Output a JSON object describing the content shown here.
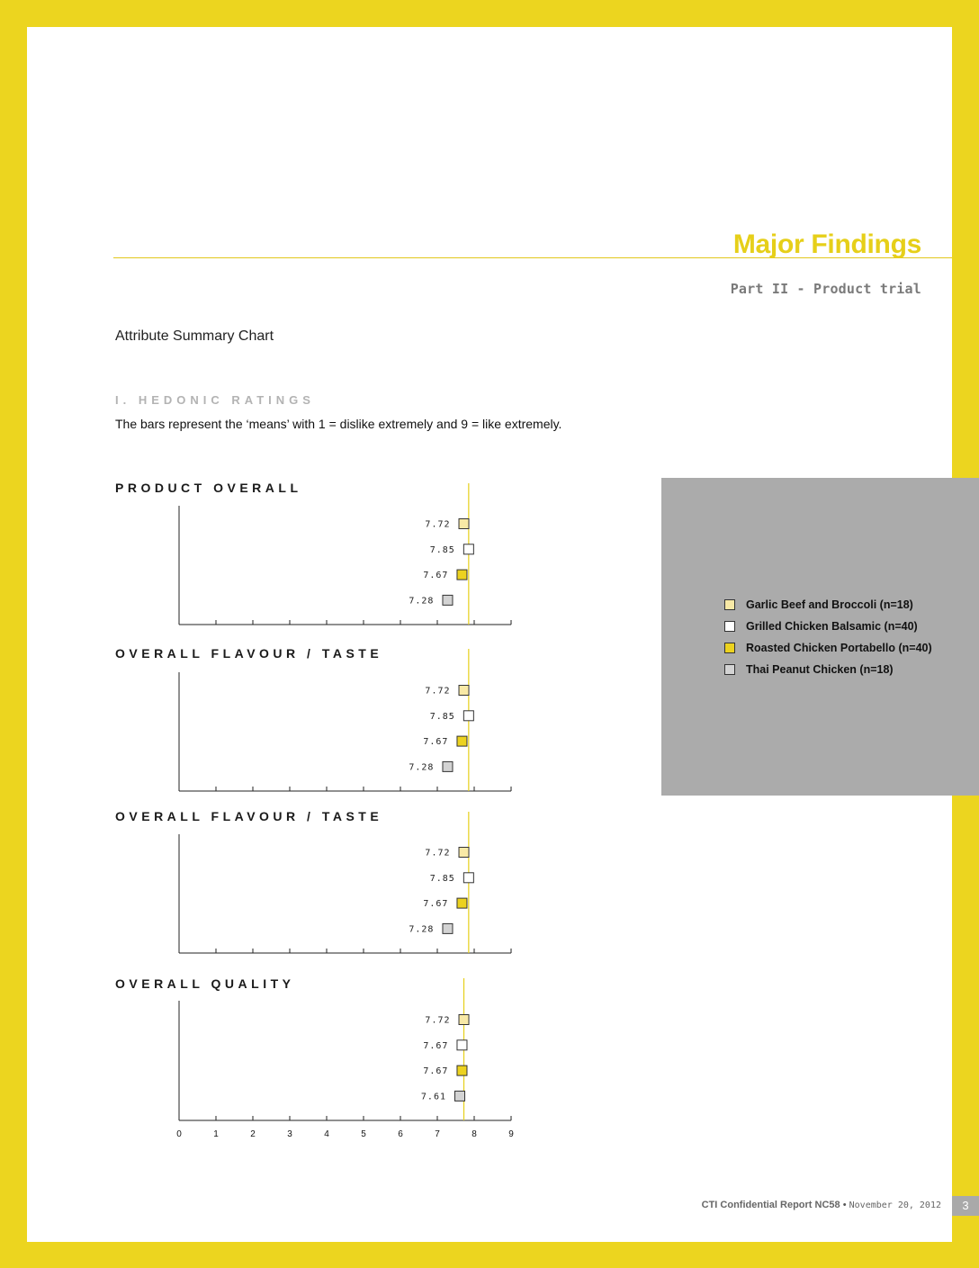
{
  "header": {
    "title": "Major Findings",
    "subtitle": "Part II - Product trial"
  },
  "chart_title": "Attribute Summary Chart",
  "section": {
    "heading": "I. HEDONIC RATINGS",
    "description": "The bars represent the ‘means’ with 1 = dislike extremely and 9 = like extremely."
  },
  "colors": {
    "page_border": "#ecd51f",
    "accent": "#e6cf19",
    "garlic_beef": "#f8e9a6",
    "grilled_chicken": "#ffffff",
    "roasted_chicken": "#ecd21f",
    "thai_peanut": "#d3d3d3",
    "legend_bg": "#ababab"
  },
  "legend": [
    {
      "label": "Garlic Beef and Broccoli (n=18)",
      "color": "#f8e9a6"
    },
    {
      "label": "Grilled Chicken Balsamic (n=40)",
      "color": "#ffffff"
    },
    {
      "label": "Roasted Chicken Portabello (n=40)",
      "color": "#ecd21f"
    },
    {
      "label": "Thai Peanut Chicken (n=18)",
      "color": "#d3d3d3"
    }
  ],
  "chart_data": [
    {
      "type": "scatter",
      "title": "PRODUCT OVERALL",
      "categories": [
        "Garlic Beef and Broccoli (n=18)",
        "Grilled Chicken Balsamic (n=40)",
        "Roasted Chicken Portabello (n=40)",
        "Thai Peanut Chicken (n=18)"
      ],
      "values": [
        7.72,
        7.85,
        7.67,
        7.28
      ],
      "value_labels": [
        "7.72",
        "7.85",
        "7.67",
        "7.28"
      ],
      "reference_value": 7.85,
      "xlim": [
        0,
        9
      ],
      "show_tick_labels": false
    },
    {
      "type": "scatter",
      "title": "OVERALL FLAVOUR / TASTE",
      "categories": [
        "Garlic Beef and Broccoli (n=18)",
        "Grilled Chicken Balsamic (n=40)",
        "Roasted Chicken Portabello (n=40)",
        "Thai Peanut Chicken (n=18)"
      ],
      "values": [
        7.72,
        7.85,
        7.67,
        7.28
      ],
      "value_labels": [
        "7.72",
        "7.85",
        "7.67",
        "7.28"
      ],
      "reference_value": 7.85,
      "xlim": [
        0,
        9
      ],
      "show_tick_labels": false
    },
    {
      "type": "scatter",
      "title": "OVERALL FLAVOUR / TASTE",
      "categories": [
        "Garlic Beef and Broccoli (n=18)",
        "Grilled Chicken Balsamic (n=40)",
        "Roasted Chicken Portabello (n=40)",
        "Thai Peanut Chicken (n=18)"
      ],
      "values": [
        7.72,
        7.85,
        7.67,
        7.28
      ],
      "value_labels": [
        "7.72",
        "7.85",
        "7.67",
        "7.28"
      ],
      "reference_value": 7.85,
      "xlim": [
        0,
        9
      ],
      "show_tick_labels": false
    },
    {
      "type": "scatter",
      "title": "OVERALL QUALITY",
      "categories": [
        "Garlic Beef and Broccoli (n=18)",
        "Grilled Chicken Balsamic (n=40)",
        "Roasted Chicken Portabello (n=40)",
        "Thai Peanut Chicken (n=18)"
      ],
      "values": [
        7.72,
        7.67,
        7.67,
        7.61
      ],
      "value_labels": [
        "7.72",
        "7.67",
        "7.67",
        "7.61"
      ],
      "reference_value": 7.72,
      "xlim": [
        0,
        9
      ],
      "xticks": [
        "0",
        "1",
        "2",
        "3",
        "4",
        "5",
        "6",
        "7",
        "8",
        "9"
      ],
      "show_tick_labels": true
    }
  ],
  "footer": {
    "report": "CTI Confidential Report NC58",
    "separator": "•",
    "date": "November 20, 2012",
    "page_number": "3"
  }
}
